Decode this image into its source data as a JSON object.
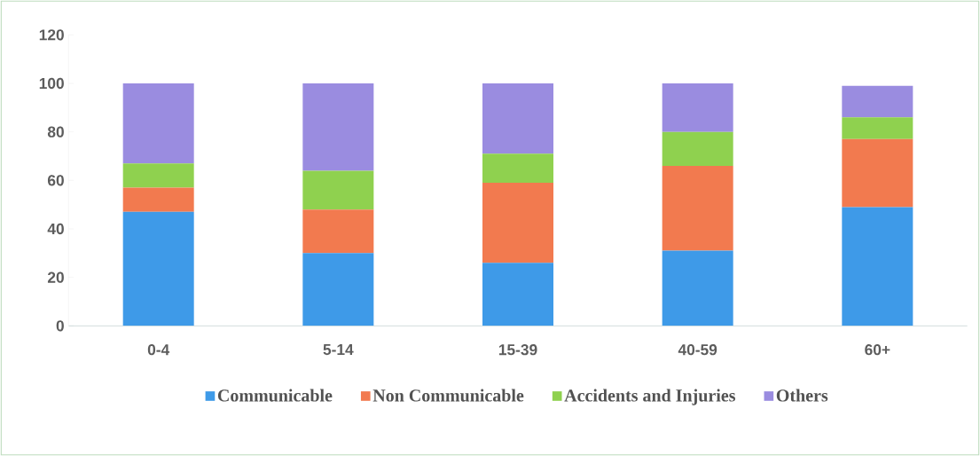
{
  "chart_data": {
    "type": "bar",
    "stacked": true,
    "categories": [
      "0-4",
      "5-14",
      "15-39",
      "40-59",
      "60+"
    ],
    "series": [
      {
        "name": "Communicable",
        "color": "#3e9ae8",
        "values": [
          47,
          30,
          26,
          31,
          49
        ]
      },
      {
        "name": "Non Communicable",
        "color": "#f27a4f",
        "values": [
          10,
          18,
          33,
          35,
          28
        ]
      },
      {
        "name": "Accidents and Injuries",
        "color": "#8fd14f",
        "values": [
          10,
          16,
          12,
          14,
          9
        ]
      },
      {
        "name": "Others",
        "color": "#9a8ce0",
        "values": [
          33,
          36,
          29,
          20,
          13
        ]
      }
    ],
    "ylim": [
      0,
      120
    ],
    "yticks": [
      0,
      20,
      40,
      60,
      80,
      100,
      120
    ],
    "grid": false,
    "legend": "bottom"
  }
}
